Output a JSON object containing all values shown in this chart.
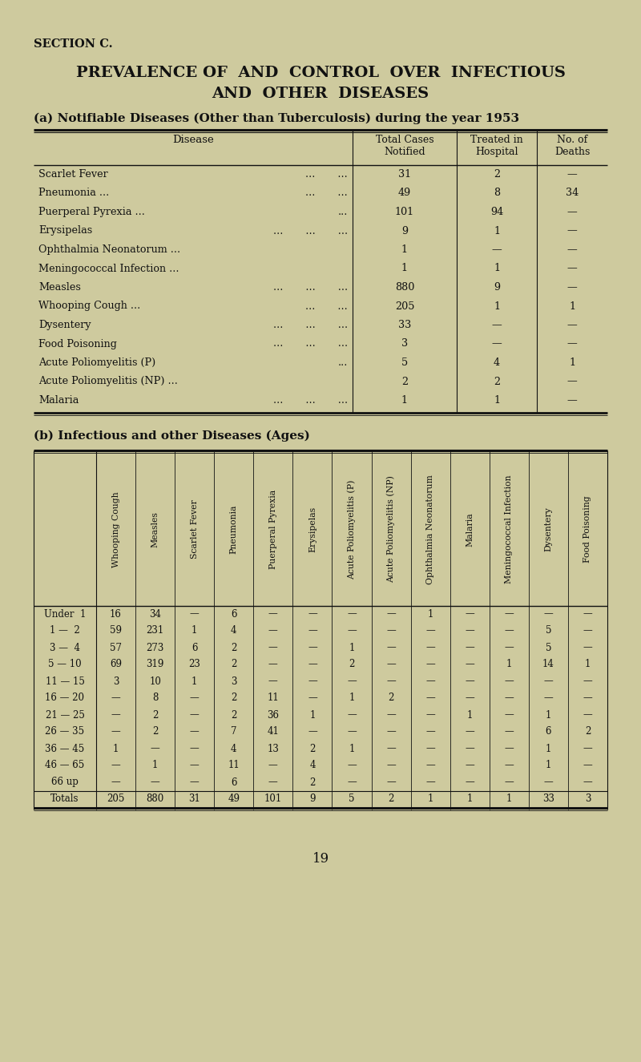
{
  "bg_color": "#ceca9e",
  "section_label": "SECTION C.",
  "main_title_line1": "PREVALENCE OF  AND  CONTROL  OVER  INFECTIOUS",
  "main_title_line2": "AND  OTHER  DISEASES",
  "sub_title_a": "(a) Notifiable Diseases (Other than Tuberculosis) during the year 1953",
  "sub_title_b": "(b) Infectious and other Diseases (Ages)",
  "page_number": "19",
  "table_a_disease_names": [
    "Scarlet Fever",
    "Pneumonia ...",
    "Puerperal Pyrexia ...",
    "Erysipelas",
    "Ophthalmia Neonatorum ...",
    "Meningococcal Infection ...",
    "Measles",
    "Whooping Cough ...",
    "Dysentery",
    "Food Poisoning",
    "Acute Poliomyelitis (P)",
    "Acute Poliomyelitis (NP) ...",
    "Malaria"
  ],
  "table_a_disease_dots": [
    "...       ...",
    "...       ...",
    "...",
    "...       ...       ...",
    "",
    "",
    "...       ...       ...",
    "...       ...",
    "...       ...       ...",
    "...       ...       ...",
    "...",
    "",
    "...       ...       ..."
  ],
  "table_a_notified": [
    "31",
    "49",
    "101",
    "9",
    "1",
    "1",
    "880",
    "205",
    "33",
    "3",
    "5",
    "2",
    "1"
  ],
  "table_a_hospital": [
    "2",
    "8",
    "94",
    "1",
    "—",
    "1",
    "9",
    "1",
    "—",
    "—",
    "4",
    "2",
    "1"
  ],
  "table_a_deaths": [
    "—",
    "34",
    "—",
    "—",
    "—",
    "—",
    "—",
    "1",
    "—",
    "—",
    "1",
    "—",
    "—"
  ],
  "table_b_col_headers": [
    "Whooping Cough",
    "Measles",
    "Scarlet Fever",
    "Pneumonia",
    "Puerperal Pyrexia",
    "Erysipelas",
    "Acute Poliomyelitis (P)",
    "Acute Poliomyelitis (NP)",
    "Ophthalmia Neonatorum",
    "Malaria",
    "Meningococcal Infection",
    "Dysentery",
    "Food Poisoning"
  ],
  "table_b_row_headers": [
    "Under  1",
    "1 —  2",
    "3 —  4",
    "5 — 10",
    "11 — 15",
    "16 — 20",
    "21 — 25",
    "26 — 35",
    "36 — 45",
    "46 — 65",
    "66 up"
  ],
  "table_b_data": [
    [
      "16",
      "34",
      "—",
      "6",
      "—",
      "—",
      "—",
      "—",
      "1",
      "—",
      "—",
      "—",
      "—"
    ],
    [
      "59",
      "231",
      "1",
      "4",
      "—",
      "—",
      "—",
      "—",
      "—",
      "—",
      "—",
      "5",
      "—"
    ],
    [
      "57",
      "273",
      "6",
      "2",
      "—",
      "—",
      "1",
      "—",
      "—",
      "—",
      "—",
      "5",
      "—"
    ],
    [
      "69",
      "319",
      "23",
      "2",
      "—",
      "—",
      "2",
      "—",
      "—",
      "—",
      "1",
      "14",
      "1"
    ],
    [
      "3",
      "10",
      "1",
      "3",
      "—",
      "—",
      "—",
      "—",
      "—",
      "—",
      "—",
      "—",
      "—"
    ],
    [
      "—",
      "8",
      "—",
      "2",
      "11",
      "—",
      "1",
      "2",
      "—",
      "—",
      "—",
      "—",
      "—"
    ],
    [
      "—",
      "2",
      "—",
      "2",
      "36",
      "1",
      "—",
      "—",
      "—",
      "1",
      "—",
      "1",
      "—"
    ],
    [
      "—",
      "2",
      "—",
      "7",
      "41",
      "—",
      "—",
      "—",
      "—",
      "—",
      "—",
      "6",
      "2"
    ],
    [
      "1",
      "—",
      "—",
      "4",
      "13",
      "2",
      "1",
      "—",
      "—",
      "—",
      "—",
      "1",
      "—"
    ],
    [
      "—",
      "1",
      "—",
      "11",
      "—",
      "4",
      "—",
      "—",
      "—",
      "—",
      "—",
      "1",
      "—"
    ],
    [
      "—",
      "—",
      "—",
      "6",
      "—",
      "2",
      "—",
      "—",
      "—",
      "—",
      "—",
      "—",
      "—"
    ]
  ],
  "table_b_totals": [
    "205",
    "880",
    "31",
    "49",
    "101",
    "9",
    "5",
    "2",
    "1",
    "1",
    "1",
    "33",
    "3"
  ]
}
